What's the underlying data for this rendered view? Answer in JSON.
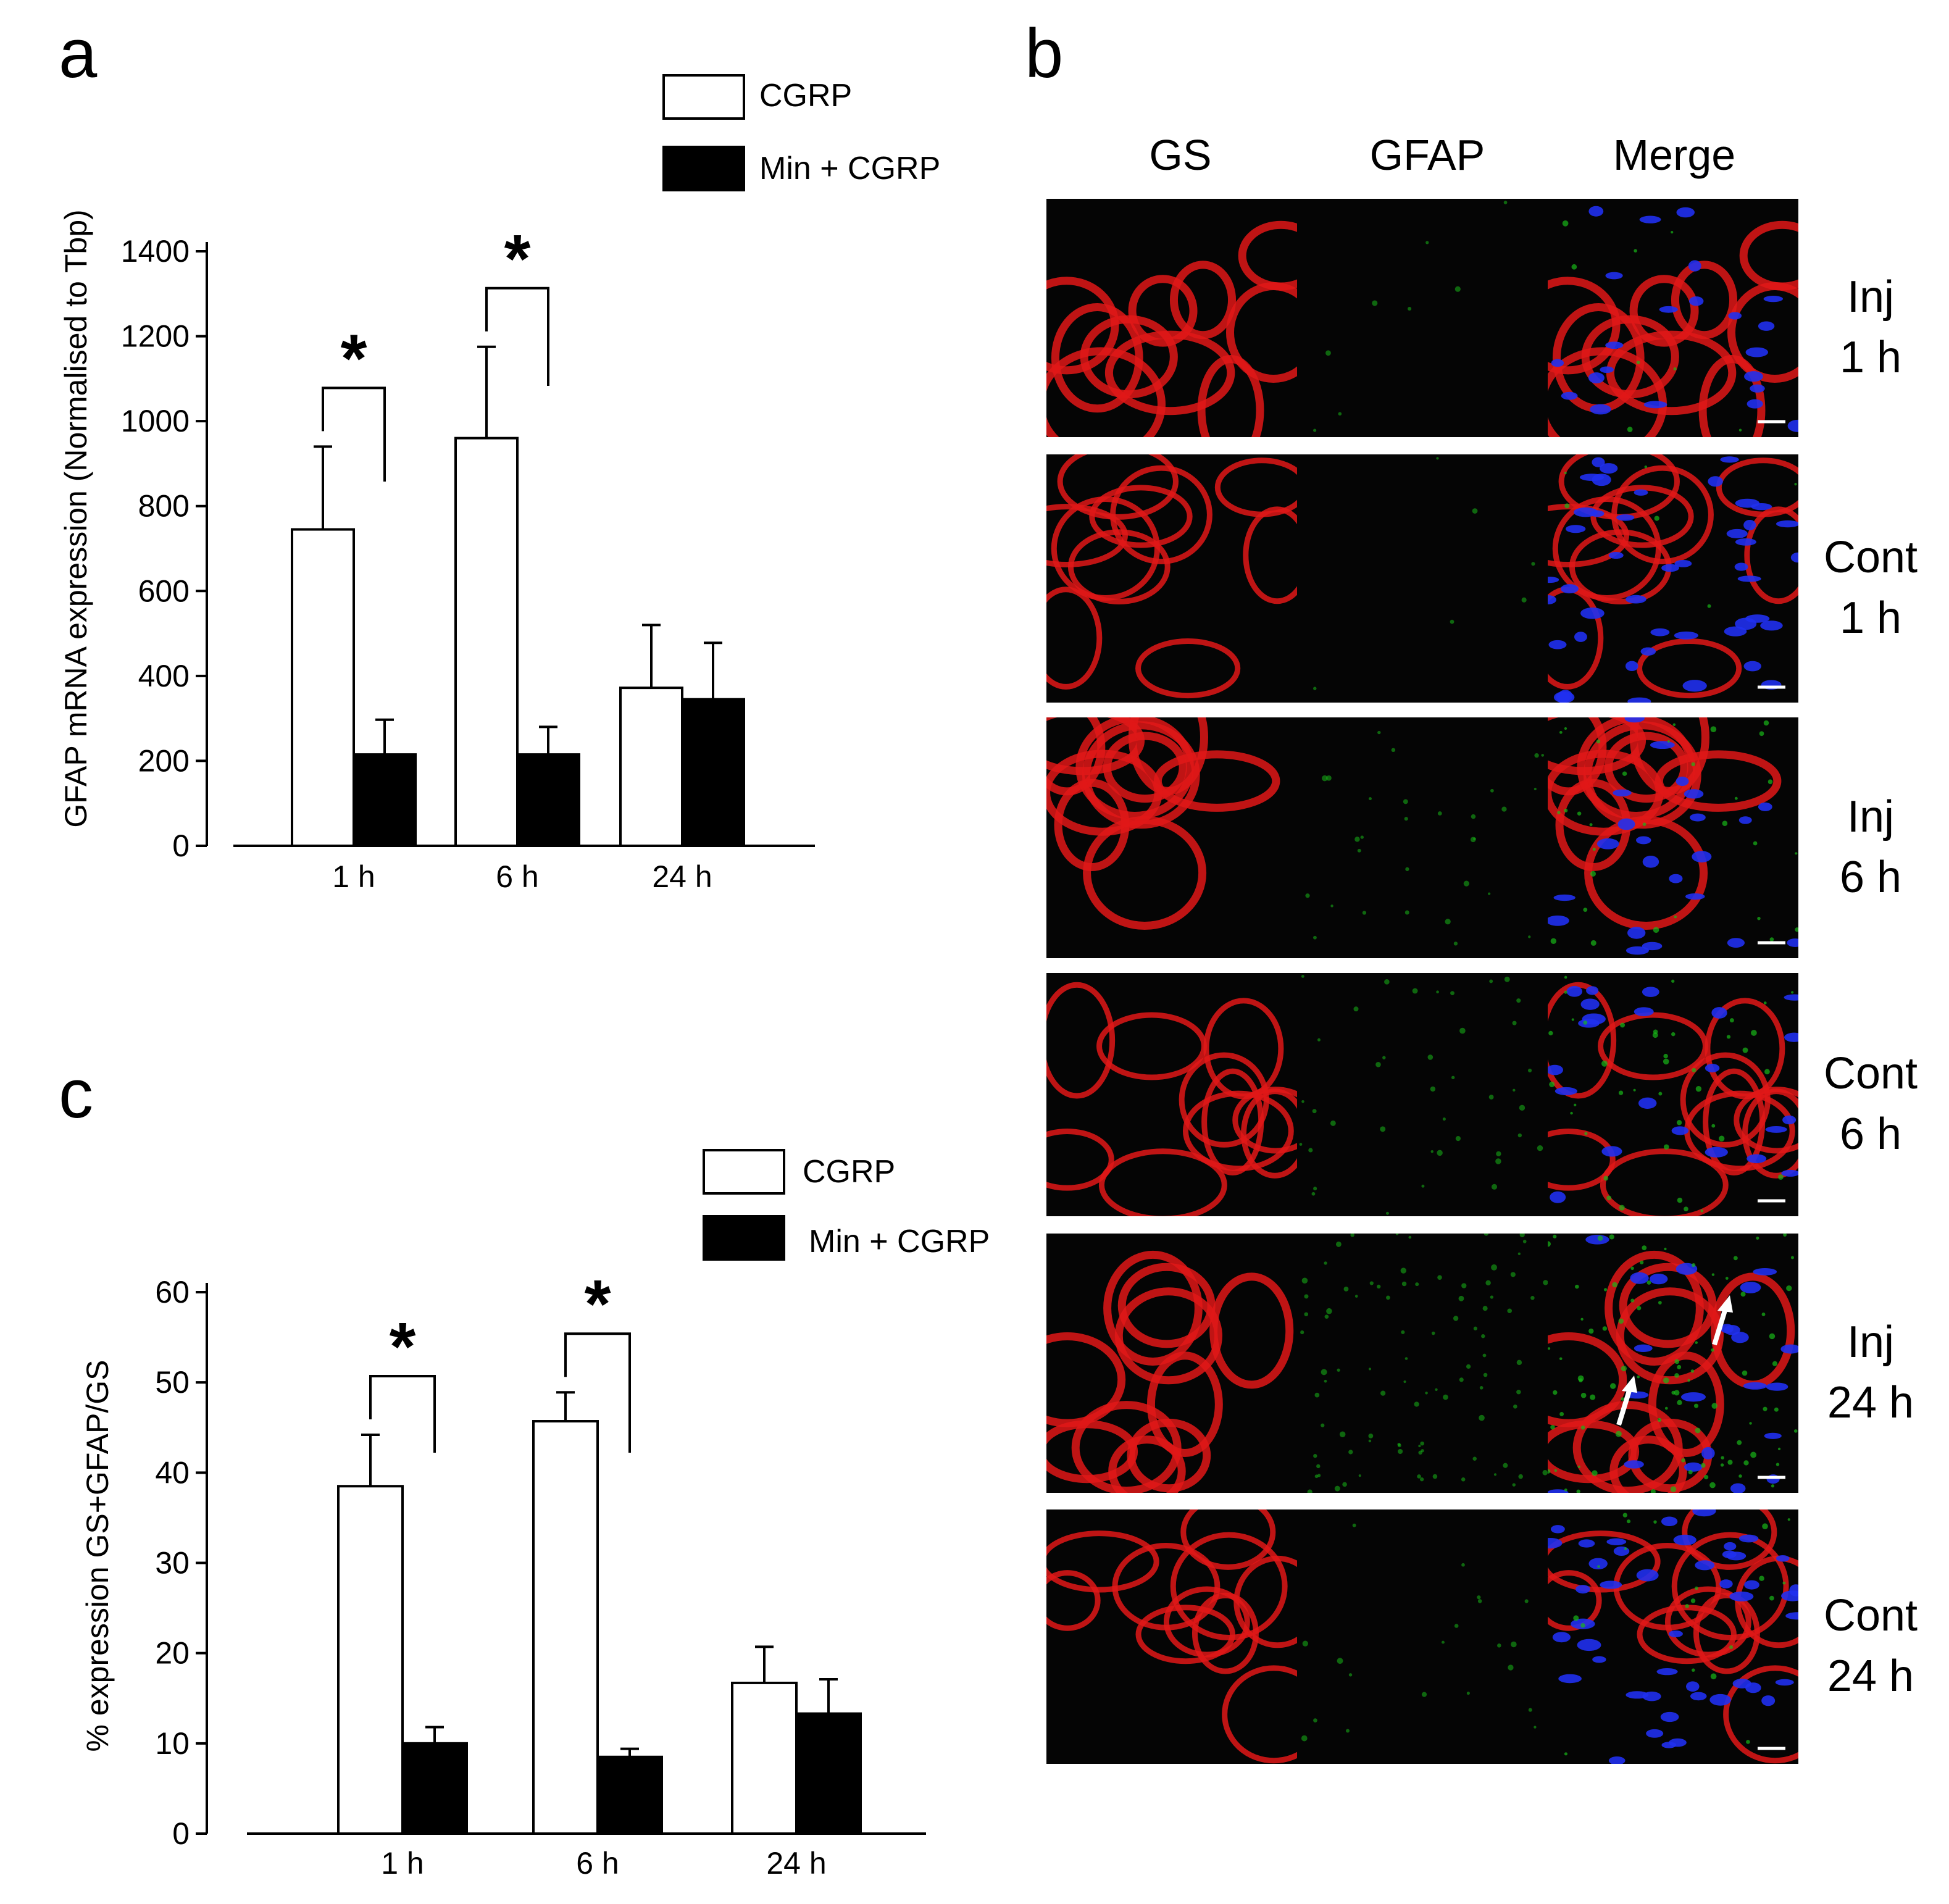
{
  "panel_labels": {
    "a": "a",
    "b": "b",
    "c": "c"
  },
  "colors": {
    "series_cgrp_fill": "#ffffff",
    "series_min_cgrp_fill": "#000000",
    "axis": "#000000",
    "micrograph_bg": "#050505",
    "gs_stain": "#e01818",
    "gfap_stain": "#18b818",
    "nuclei": "#2030f0"
  },
  "panel_b": {
    "columns": [
      "GS",
      "GFAP",
      "Merge"
    ],
    "rows": [
      {
        "line1": "Inj",
        "line2": "1 h"
      },
      {
        "line1": "Cont",
        "line2": "1 h"
      },
      {
        "line1": "Inj",
        "line2": "6 h"
      },
      {
        "line1": "Cont",
        "line2": "6 h"
      },
      {
        "line1": "Inj",
        "line2": "24 h"
      },
      {
        "line1": "Cont",
        "line2": "24 h"
      }
    ]
  },
  "chart_data": [
    {
      "id": "a",
      "type": "bar",
      "categories": [
        "1 h",
        "6 h",
        "24 h"
      ],
      "series": [
        {
          "name": "CGRP",
          "values": [
            745,
            960,
            372
          ],
          "errors": [
            195,
            215,
            148
          ]
        },
        {
          "name": "Min + CGRP",
          "values": [
            215,
            215,
            345
          ],
          "errors": [
            82,
            65,
            133
          ]
        }
      ],
      "ylabel": "GFAP mRNA expression (Normalised to Tbp)",
      "xlabel": "",
      "ylim": [
        0,
        1400
      ],
      "yticks": [
        0,
        200,
        400,
        600,
        800,
        1000,
        1200,
        1400
      ],
      "significance": [
        {
          "category": "1 h",
          "label": "*"
        },
        {
          "category": "6 h",
          "label": "*"
        }
      ],
      "legend_position": "top-right"
    },
    {
      "id": "c",
      "type": "bar",
      "categories": [
        "1 h",
        "6 h",
        "24 h"
      ],
      "series": [
        {
          "name": "CGRP",
          "values": [
            38.5,
            45.7,
            16.7
          ],
          "errors": [
            5.7,
            3.2,
            4.0
          ]
        },
        {
          "name": "Min + CGRP",
          "values": [
            10.0,
            8.5,
            13.3
          ],
          "errors": [
            1.8,
            0.9,
            3.8
          ]
        }
      ],
      "ylabel": "% expression GS+GFAP/GS",
      "xlabel": "",
      "ylim": [
        0,
        60
      ],
      "yticks": [
        0,
        10,
        20,
        30,
        40,
        50,
        60
      ],
      "significance": [
        {
          "category": "1 h",
          "label": "*"
        },
        {
          "category": "6 h",
          "label": "*"
        }
      ],
      "legend_position": "top-right"
    }
  ]
}
